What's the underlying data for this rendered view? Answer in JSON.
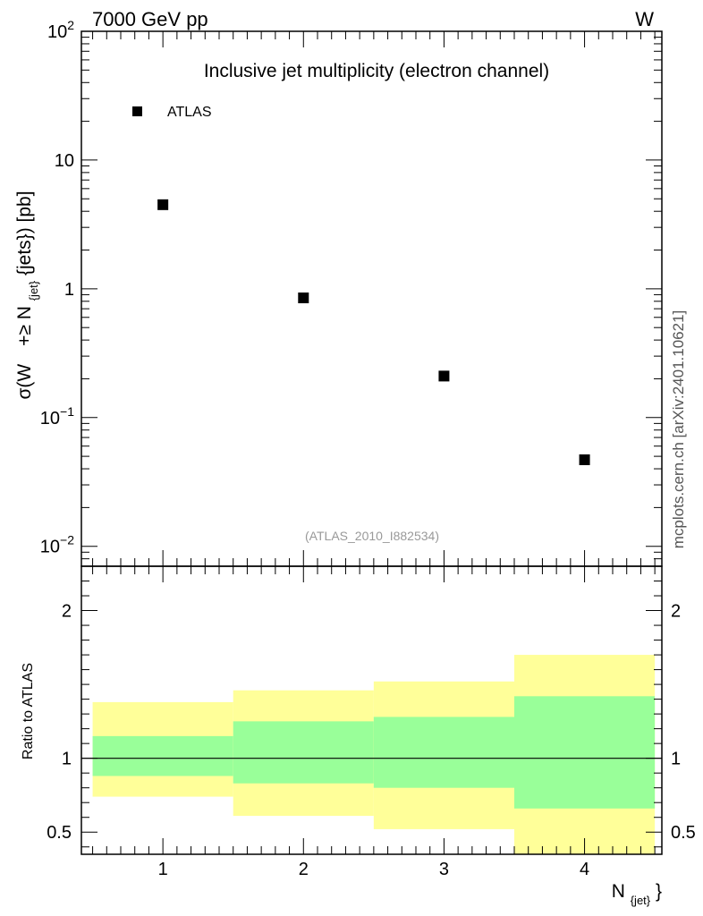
{
  "header": {
    "left_label": "7000 GeV pp",
    "right_label": "W"
  },
  "side_label": "mcplots.cern.ch [arXiv:2401.10621]",
  "colors": {
    "yellow_band": "#ffff99",
    "green_band": "#99ff99",
    "marker": "#000000",
    "analysis_id": "#999999"
  },
  "chart_data": [
    {
      "type": "scatter",
      "title": "Inclusive jet multiplicity (electron channel)",
      "analysis_id": "(ATLAS_2010_I882534)",
      "ylabel": {
        "main": "σ(W",
        "geq": "+≥ N",
        "sub": "{jet}",
        "tail": "{jets}) [pb]"
      },
      "y_scale": "log",
      "ylim": [
        0.007,
        100
      ],
      "xlim": [
        0.42,
        4.55
      ],
      "y_ticks": [
        {
          "value": 100,
          "base": "10",
          "exp": "2"
        },
        {
          "value": 10,
          "base": "10",
          "exp": ""
        },
        {
          "value": 1,
          "base": "1",
          "exp": ""
        },
        {
          "value": 0.1,
          "base": "10",
          "exp": "−1"
        },
        {
          "value": 0.01,
          "base": "10",
          "exp": "−2"
        }
      ],
      "legend": {
        "position": "top-left",
        "entries": [
          "ATLAS"
        ]
      },
      "series": [
        {
          "name": "ATLAS",
          "x": [
            1,
            2,
            3,
            4
          ],
          "y": [
            4.5,
            0.85,
            0.21,
            0.047
          ]
        }
      ]
    },
    {
      "type": "area",
      "ylabel": "Ratio to ATLAS",
      "xlabel_main": "N",
      "xlabel_sub": "{jet}",
      "xlabel_tail": "}",
      "ylim": [
        0.35,
        2.3
      ],
      "xlim": [
        0.42,
        4.55
      ],
      "y_tick_labels": [
        {
          "value": 0.5,
          "label": "0.5"
        },
        {
          "value": 1,
          "label": "1"
        },
        {
          "value": 2,
          "label": "2"
        }
      ],
      "x_tick_labels": [
        {
          "value": 1,
          "label": "1"
        },
        {
          "value": 2,
          "label": "2"
        },
        {
          "value": 3,
          "label": "3"
        },
        {
          "value": 4,
          "label": "4"
        }
      ],
      "reference_line": 1,
      "bins": [
        {
          "lo": 0.5,
          "hi": 1.5,
          "yellow": [
            0.74,
            1.38
          ],
          "green": [
            0.88,
            1.15
          ]
        },
        {
          "lo": 1.5,
          "hi": 2.5,
          "yellow": [
            0.61,
            1.46
          ],
          "green": [
            0.83,
            1.25
          ]
        },
        {
          "lo": 2.5,
          "hi": 3.5,
          "yellow": [
            0.52,
            1.52
          ],
          "green": [
            0.8,
            1.28
          ]
        },
        {
          "lo": 3.5,
          "hi": 4.5,
          "yellow": [
            0.33,
            1.7
          ],
          "green": [
            0.66,
            1.42
          ]
        }
      ]
    }
  ]
}
